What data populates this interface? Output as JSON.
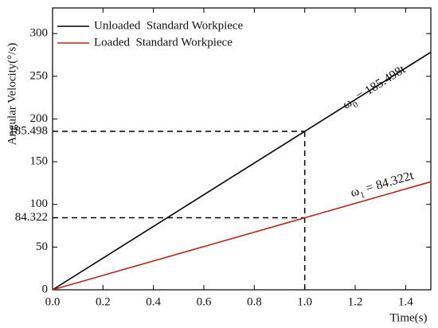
{
  "chart_data": {
    "type": "line",
    "y_label": "Angular Velocity(°/s)",
    "x_label": "Time(s)",
    "x": [
      0,
      1.5
    ],
    "series": [
      {
        "name": "Unloaded  Standard Workpiece",
        "color": "#000000",
        "values": [
          0,
          278.247
        ]
      },
      {
        "name": "Loaded  Standard Workpiece",
        "color": "#b0281e",
        "values": [
          0,
          126.483
        ]
      }
    ],
    "xlim": [
      0,
      1.5
    ],
    "xticks": [
      {
        "value": 0,
        "label": "0.0"
      },
      {
        "value": 0.2,
        "label": "0.2"
      },
      {
        "value": 0.4,
        "label": "0.4"
      },
      {
        "value": 0.6,
        "label": "0.6"
      },
      {
        "value": 0.8,
        "label": "0.8"
      },
      {
        "value": 1.0,
        "label": "1.0"
      },
      {
        "value": 1.2,
        "label": "1.2"
      },
      {
        "value": 1.4,
        "label": "1.4"
      }
    ],
    "ylim": [
      0,
      330
    ],
    "yticks": [
      0,
      50,
      100,
      150,
      200,
      250,
      300
    ],
    "reference_lines": {
      "x": 1.0,
      "y": [
        185.498,
        84.322
      ]
    },
    "annotations": [
      {
        "symbol": "ω",
        "subscript": "0",
        "text": " = 185.498t"
      },
      {
        "symbol": "ω",
        "subscript": "1",
        "text": " = 84.322t"
      }
    ],
    "legend": "upper-left",
    "grid": false
  }
}
